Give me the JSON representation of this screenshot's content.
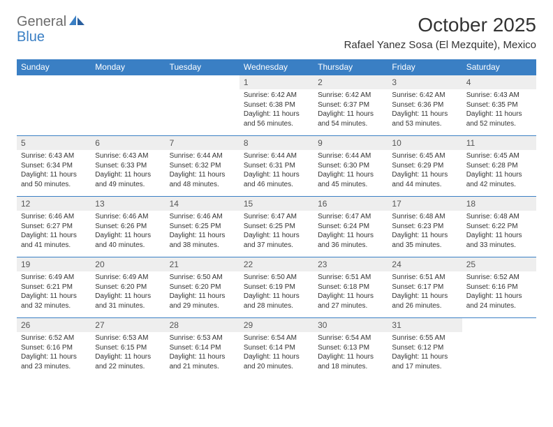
{
  "logo": {
    "general": "General",
    "blue": "Blue"
  },
  "title": "October 2025",
  "location": "Rafael Yanez Sosa (El Mezquite), Mexico",
  "colors": {
    "header_bg": "#3a7fc4",
    "header_text": "#ffffff",
    "daynum_bg": "#eeeeee",
    "body_text": "#333333",
    "logo_gray": "#6b6b6b",
    "logo_blue": "#3a7fc4"
  },
  "day_headers": [
    "Sunday",
    "Monday",
    "Tuesday",
    "Wednesday",
    "Thursday",
    "Friday",
    "Saturday"
  ],
  "weeks": [
    {
      "nums": [
        "",
        "",
        "",
        "1",
        "2",
        "3",
        "4"
      ],
      "details": [
        "",
        "",
        "",
        "Sunrise: 6:42 AM\nSunset: 6:38 PM\nDaylight: 11 hours and 56 minutes.",
        "Sunrise: 6:42 AM\nSunset: 6:37 PM\nDaylight: 11 hours and 54 minutes.",
        "Sunrise: 6:42 AM\nSunset: 6:36 PM\nDaylight: 11 hours and 53 minutes.",
        "Sunrise: 6:43 AM\nSunset: 6:35 PM\nDaylight: 11 hours and 52 minutes."
      ]
    },
    {
      "nums": [
        "5",
        "6",
        "7",
        "8",
        "9",
        "10",
        "11"
      ],
      "details": [
        "Sunrise: 6:43 AM\nSunset: 6:34 PM\nDaylight: 11 hours and 50 minutes.",
        "Sunrise: 6:43 AM\nSunset: 6:33 PM\nDaylight: 11 hours and 49 minutes.",
        "Sunrise: 6:44 AM\nSunset: 6:32 PM\nDaylight: 11 hours and 48 minutes.",
        "Sunrise: 6:44 AM\nSunset: 6:31 PM\nDaylight: 11 hours and 46 minutes.",
        "Sunrise: 6:44 AM\nSunset: 6:30 PM\nDaylight: 11 hours and 45 minutes.",
        "Sunrise: 6:45 AM\nSunset: 6:29 PM\nDaylight: 11 hours and 44 minutes.",
        "Sunrise: 6:45 AM\nSunset: 6:28 PM\nDaylight: 11 hours and 42 minutes."
      ]
    },
    {
      "nums": [
        "12",
        "13",
        "14",
        "15",
        "16",
        "17",
        "18"
      ],
      "details": [
        "Sunrise: 6:46 AM\nSunset: 6:27 PM\nDaylight: 11 hours and 41 minutes.",
        "Sunrise: 6:46 AM\nSunset: 6:26 PM\nDaylight: 11 hours and 40 minutes.",
        "Sunrise: 6:46 AM\nSunset: 6:25 PM\nDaylight: 11 hours and 38 minutes.",
        "Sunrise: 6:47 AM\nSunset: 6:25 PM\nDaylight: 11 hours and 37 minutes.",
        "Sunrise: 6:47 AM\nSunset: 6:24 PM\nDaylight: 11 hours and 36 minutes.",
        "Sunrise: 6:48 AM\nSunset: 6:23 PM\nDaylight: 11 hours and 35 minutes.",
        "Sunrise: 6:48 AM\nSunset: 6:22 PM\nDaylight: 11 hours and 33 minutes."
      ]
    },
    {
      "nums": [
        "19",
        "20",
        "21",
        "22",
        "23",
        "24",
        "25"
      ],
      "details": [
        "Sunrise: 6:49 AM\nSunset: 6:21 PM\nDaylight: 11 hours and 32 minutes.",
        "Sunrise: 6:49 AM\nSunset: 6:20 PM\nDaylight: 11 hours and 31 minutes.",
        "Sunrise: 6:50 AM\nSunset: 6:20 PM\nDaylight: 11 hours and 29 minutes.",
        "Sunrise: 6:50 AM\nSunset: 6:19 PM\nDaylight: 11 hours and 28 minutes.",
        "Sunrise: 6:51 AM\nSunset: 6:18 PM\nDaylight: 11 hours and 27 minutes.",
        "Sunrise: 6:51 AM\nSunset: 6:17 PM\nDaylight: 11 hours and 26 minutes.",
        "Sunrise: 6:52 AM\nSunset: 6:16 PM\nDaylight: 11 hours and 24 minutes."
      ]
    },
    {
      "nums": [
        "26",
        "27",
        "28",
        "29",
        "30",
        "31",
        ""
      ],
      "details": [
        "Sunrise: 6:52 AM\nSunset: 6:16 PM\nDaylight: 11 hours and 23 minutes.",
        "Sunrise: 6:53 AM\nSunset: 6:15 PM\nDaylight: 11 hours and 22 minutes.",
        "Sunrise: 6:53 AM\nSunset: 6:14 PM\nDaylight: 11 hours and 21 minutes.",
        "Sunrise: 6:54 AM\nSunset: 6:14 PM\nDaylight: 11 hours and 20 minutes.",
        "Sunrise: 6:54 AM\nSunset: 6:13 PM\nDaylight: 11 hours and 18 minutes.",
        "Sunrise: 6:55 AM\nSunset: 6:12 PM\nDaylight: 11 hours and 17 minutes.",
        ""
      ]
    }
  ]
}
